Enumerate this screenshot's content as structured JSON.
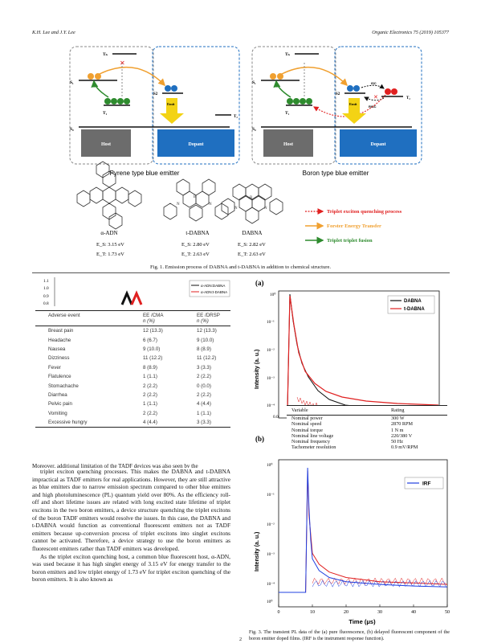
{
  "header": {
    "authors": "K.H. Lee and J.Y. Lee",
    "journal": "Organic Electronics 75 (2019) 105377"
  },
  "figure1": {
    "left_panel": {
      "caption": "Pyrene type blue emitter",
      "host": "Host",
      "dopant": "Dopant",
      "emit": "Emit",
      "t1": "T₁",
      "t2": "T₂",
      "s1": "S₁",
      "s2": "S2",
      "s0": "S₀",
      "tn": "Tₙ"
    },
    "right_panel": {
      "caption": "Boron type blue emitter",
      "host": "Host",
      "dopant": "Dopant",
      "emit": "Emit",
      "isc": "ISC",
      "risc": "RISC",
      "t1": "T₁",
      "t2": "T₂",
      "s1": "S₁",
      "s2": "S2",
      "s0": "S₀",
      "tn": "Tₙ"
    },
    "molecules": [
      {
        "name": "α-ADN",
        "eg": "E_S: 3.15 eV",
        "et": "E_T: 1.73 eV"
      },
      {
        "name": "t-DABNA",
        "eg": "E_S: 2.80 eV",
        "et": "E_T: 2.63 eV"
      },
      {
        "name": "DABNA",
        "eg": "E_S: 2.82 eV",
        "et": "E_T: 2.63 eV"
      }
    ],
    "legend": [
      {
        "label": "Triplet exciton quenching process",
        "color": "#e02020"
      },
      {
        "label": "Forster Energy Transfer",
        "color": "#f0a030"
      },
      {
        "label": "Triplet triplet fusion",
        "color": "#2e8b2e"
      }
    ],
    "caption": "Fig. 1. Emission process of DABNA and t-DABNA in addition to chemical structure."
  },
  "inset_chart": {
    "yticks": [
      "1.1",
      "1.0",
      "0.9",
      "0.8"
    ],
    "legend": [
      {
        "label": "α-ADN:DABNA",
        "color": "#111111"
      },
      {
        "label": "α-ADN:t-DABNA",
        "color": "#e02020"
      }
    ]
  },
  "adverse_table": {
    "headers": [
      {
        "line1": "Adverse event",
        "line2": ""
      },
      {
        "line1": "EE /CMA",
        "line2": "n (%)"
      },
      {
        "line1": "EE /DRSP",
        "line2": "n (%)"
      }
    ],
    "rows": [
      [
        "Breast pain",
        "12 (13.3)",
        "12 (13.3)"
      ],
      [
        "Headache",
        "6 (6.7)",
        "9 (10.0)"
      ],
      [
        "Nausea",
        "9 (10.0)",
        "8 (8.9)"
      ],
      [
        "Dizziness",
        "11 (12.2)",
        "11 (12.2)"
      ],
      [
        "Fever",
        "8 (8.9)",
        "3 (3.3)"
      ],
      [
        "Flatulence",
        "1 (1.1)",
        "2 (2.2)"
      ],
      [
        "Stomachache",
        "2 (2.2)",
        "0 (0.0)"
      ],
      [
        "Diarrhea",
        "2 (2.2)",
        "2 (2.2)"
      ],
      [
        "Pelvic pain",
        "1 (1.1)",
        "4 (4.4)"
      ],
      [
        "Vomiting",
        "2 (2.2)",
        "1 (1.1)"
      ],
      [
        "Excessive hungry",
        "4 (4.4)",
        "3 (3.3)"
      ]
    ]
  },
  "body": {
    "partial_line": "Moreover, additional limitation of the TADF devices was also seen by the",
    "paragraph1": "triplet exciton quenching processes. This makes the DABNA and t-DABNA impractical as TADF emitters for real applications. However, they are still attractive as blue emitters due to narrow emission spectrum compared to other blue emitters and high photoluminescence (PL) quantum yield over 80%. As the efficiency roll-off and short lifetime issues are related with long excited state lifetime of triplet excitons in the two boron emitters, a device structure quenching the triplet excitons of the boron TADF emitters would resolve the issues. In this case, the DABNA and t-DABNA would function as conventional fluorescent emitters not as TADF emitters because up-conversion process of triplet excitons into singlet excitons cannot be activated. Therefore, a device strategy to use the boron emitters as fluorescent emitters rather than TADF emitters was developed.",
    "paragraph2": "As the triplet exciton quenching host, a common blue fluorescent host, α-ADN, was used because it has high singlet energy of 3.15 eV for energy transfer to the boron emitters and low triplet energy of 1.73 eV for triplet exciton quenching of the boron emitters. It is also known as"
  },
  "chart_a": {
    "panel_label": "(a)",
    "ylabel": "Intensity (a. u.)",
    "yticks": [
      "10⁰",
      "10⁻¹",
      "10⁻²",
      "10⁻³",
      "10⁻⁴"
    ],
    "xtick_first": "0.0",
    "legend": [
      {
        "label": "DABNA",
        "color": "#111111"
      },
      {
        "label": "t-DABNA",
        "color": "#e02020"
      }
    ]
  },
  "motor_table": {
    "headers": [
      "Variable",
      "Rating"
    ],
    "rows": [
      [
        "Nominal power",
        "300 W"
      ],
      [
        "Nominal speed",
        "2870 RPM"
      ],
      [
        "Nominal torque",
        "1 N m"
      ],
      [
        "Nominal line voltage",
        "220/380 V"
      ],
      [
        "Nominal frequency",
        "50 Hz"
      ],
      [
        "Tachometer resolution",
        "0.9 mV/RPM"
      ]
    ]
  },
  "chart_data": {
    "type": "line",
    "panel_label": "(b)",
    "xlabel": "Time (μs)",
    "ylabel": "Intensity (a. u.)",
    "x_ticks": [
      0,
      10,
      20,
      30,
      40,
      50
    ],
    "y_tick_labels": [
      "10⁰",
      "10⁻¹",
      "10⁻²",
      "10⁻³",
      "10⁻⁴",
      "10⁰"
    ],
    "xlim": [
      0,
      50
    ],
    "scale_y": "log",
    "series": [
      {
        "name": "IRF",
        "color": "#2040e0",
        "x": [
          0,
          8,
          8.6,
          9,
          9.5,
          10,
          12,
          15,
          20,
          30,
          40,
          50
        ],
        "y": [
          0.0001,
          0.0001,
          1,
          0.05,
          0.005,
          0.0012,
          0.0005,
          0.0003,
          0.00022,
          0.00018,
          0.00016,
          0.00015
        ]
      },
      {
        "name": "",
        "color": "#e02020",
        "x": [
          0,
          8,
          8.6,
          9,
          10,
          12,
          15,
          20,
          30,
          40,
          50
        ],
        "y": [
          0.0001,
          0.0001,
          0.8,
          0.03,
          0.0018,
          0.0008,
          0.00045,
          0.0003,
          0.00022,
          0.0002,
          0.00018
        ]
      }
    ]
  },
  "figure3_caption": "Fig. 3. The transient PL data of the (a) pure fluorescence, (b) delayed fluorescent component of the boron emitter doped films. (IRF is the instrument response function).",
  "page_number": "2"
}
